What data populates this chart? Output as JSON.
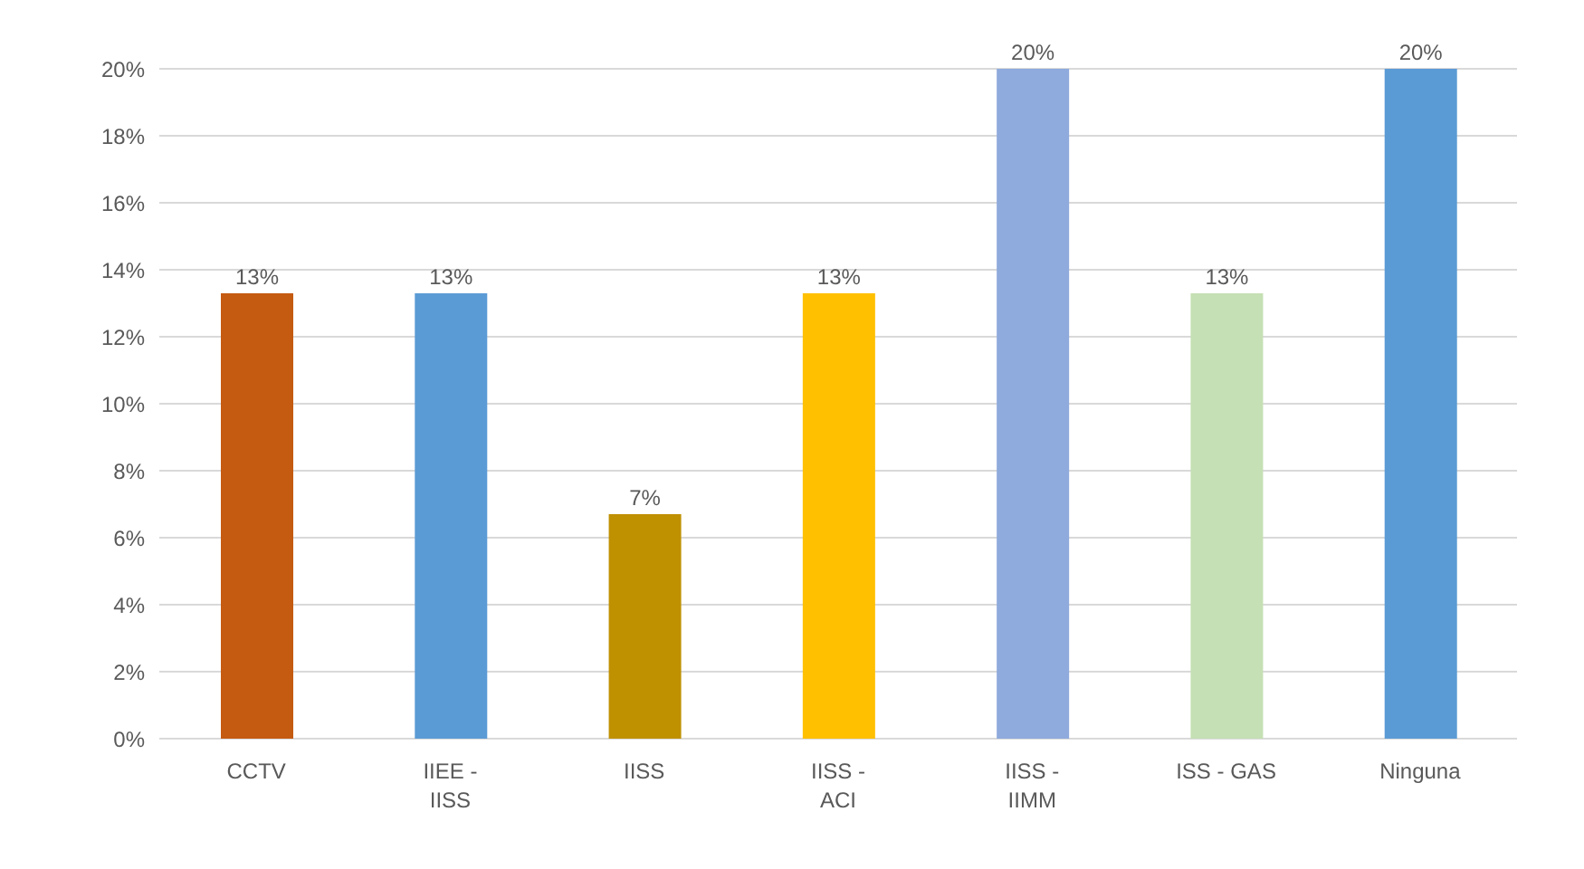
{
  "chart_data": {
    "type": "bar",
    "categories": [
      "CCTV",
      "IIEE - IISS",
      "IISS",
      "IISS - ACI",
      "IISS - IIMM",
      "ISS - GAS",
      "Ninguna"
    ],
    "values": [
      13.3,
      13.3,
      6.7,
      13.3,
      20,
      13.3,
      20
    ],
    "colors": [
      "#c55a11",
      "#5b9bd5",
      "#bf9000",
      "#ffc000",
      "#8faadc",
      "#c5e0b4",
      "#5b9bd5"
    ],
    "value_labels": [
      "13%",
      "13%",
      "7%",
      "13%",
      "20%",
      "13%",
      "20%"
    ],
    "ylim": [
      0,
      20
    ],
    "yticks": [
      {
        "value": 0,
        "label": "0%"
      },
      {
        "value": 2,
        "label": "2%"
      },
      {
        "value": 4,
        "label": "4%"
      },
      {
        "value": 6,
        "label": "6%"
      },
      {
        "value": 8,
        "label": "8%"
      },
      {
        "value": 10,
        "label": "10%"
      },
      {
        "value": 12,
        "label": "12%"
      },
      {
        "value": 14,
        "label": "14%"
      },
      {
        "value": 16,
        "label": "16%"
      },
      {
        "value": 18,
        "label": "18%"
      },
      {
        "value": 20,
        "label": "20%"
      }
    ],
    "grid": "y"
  }
}
